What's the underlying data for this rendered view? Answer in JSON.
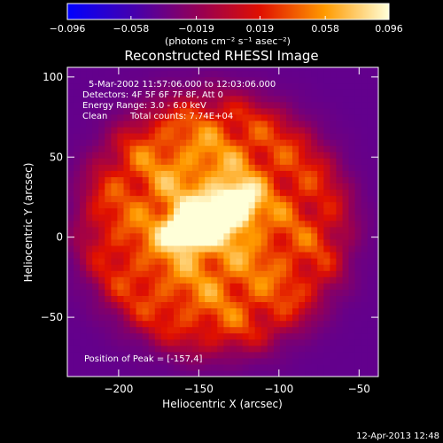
{
  "chart_data": {
    "type": "heatmap",
    "title": "Reconstructed RHESSI Image",
    "xlabel": "Heliocentric X (arcsec)",
    "ylabel": "Heliocentric Y (arcsec)",
    "xlim": [
      -232,
      -38
    ],
    "ylim": [
      -87,
      106
    ],
    "x_ticks": [
      -200,
      -150,
      -100,
      -50
    ],
    "y_ticks": [
      -50,
      0,
      50,
      100
    ],
    "colorbar": {
      "range": [
        -0.096,
        0.096
      ],
      "ticks": [
        {
          "value": -0.096,
          "label": "-0.096"
        },
        {
          "value": -0.058,
          "label": "-0.058"
        },
        {
          "value": -0.019,
          "label": "-0.019"
        },
        {
          "value": 0.019,
          "label": "0.019"
        },
        {
          "value": 0.058,
          "label": "0.058"
        },
        {
          "value": 0.096,
          "label": "0.096"
        }
      ],
      "unit_label": "(photons cm⁻² s⁻¹ asec⁻²)"
    },
    "annotations": {
      "time_range": "5-Mar-2002 11:57:06.000 to 12:03:06.000",
      "detectors": "Detectors: 4F 5F 6F 7F 8F, Att 0",
      "energy_range": "Energy Range: 3.0 - 6.0 keV",
      "method": "Clean",
      "total_counts": "Total counts: 7.74E+04",
      "peak": "Position of Peak = [-157,4]"
    },
    "peak": {
      "x": -157,
      "y": 4
    },
    "sources": [
      {
        "x": -157,
        "y": 4,
        "sx": 11,
        "sy": 8,
        "amp": 0.096
      },
      {
        "x": -126,
        "y": 22,
        "sx": 9,
        "sy": 9,
        "amp": 0.072
      },
      {
        "x": -140,
        "y": 14,
        "sx": 14,
        "sy": 9,
        "amp": 0.045
      },
      {
        "x": -150,
        "y": 40,
        "sx": 30,
        "sy": 28,
        "amp": 0.032
      },
      {
        "x": -140,
        "y": -15,
        "sx": 32,
        "sy": 28,
        "amp": 0.026
      }
    ],
    "disk": {
      "cx": -140,
      "cy": 8,
      "radius": 82,
      "level": 0.024
    },
    "background": -0.042
  },
  "footer": {
    "timestamp": "12-Apr-2013 12:48"
  }
}
